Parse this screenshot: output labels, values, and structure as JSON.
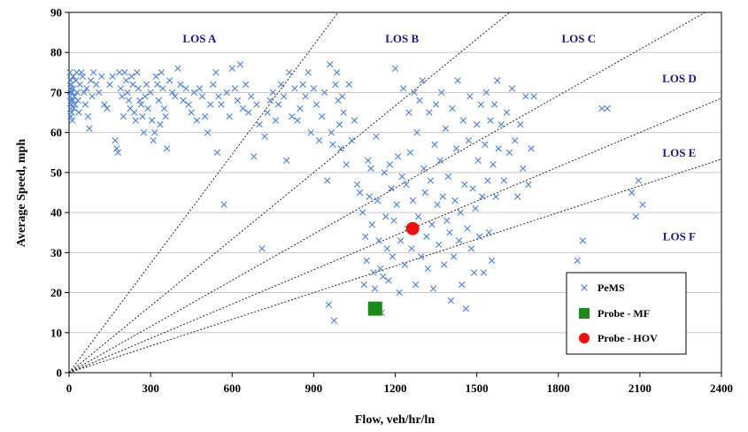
{
  "chart_data": {
    "type": "scatter",
    "title": "",
    "xlabel": "Flow, veh/hr/ln",
    "ylabel": "Average Speed, mph",
    "xlim": [
      0,
      2400
    ],
    "ylim": [
      0,
      90
    ],
    "xticks": [
      "0",
      "300",
      "600",
      "900",
      "1200",
      "1500",
      "1800",
      "2100",
      "2400"
    ],
    "yticks": [
      "0",
      "10",
      "20",
      "30",
      "40",
      "50",
      "60",
      "70",
      "80",
      "90"
    ],
    "grid": "horizontal",
    "legend_position": "bottom-right",
    "los_lines_density": [
      11,
      18,
      26,
      35,
      45
    ],
    "los_labels": [
      {
        "text": "LOS A",
        "x": 480,
        "y": 83.5
      },
      {
        "text": "LOS B",
        "x": 1225,
        "y": 83.5
      },
      {
        "text": "LOS C",
        "x": 1875,
        "y": 83.5
      },
      {
        "text": "LOS D",
        "x": 2245,
        "y": 73.5
      },
      {
        "text": "LOS E",
        "x": 2245,
        "y": 55
      },
      {
        "text": "LOS F",
        "x": 2245,
        "y": 34
      }
    ],
    "series": [
      {
        "name": "PeMS",
        "marker": "x",
        "color": "#4a7fd4",
        "points": [
          [
            3,
            75
          ],
          [
            5,
            73
          ],
          [
            6,
            71
          ],
          [
            8,
            70
          ],
          [
            4,
            69
          ],
          [
            7,
            68
          ],
          [
            9,
            67
          ],
          [
            5,
            66
          ],
          [
            10,
            65
          ],
          [
            6,
            64
          ],
          [
            12,
            63
          ],
          [
            8,
            72
          ],
          [
            15,
            74
          ],
          [
            11,
            70
          ],
          [
            14,
            68
          ],
          [
            18,
            66
          ],
          [
            16,
            71
          ],
          [
            20,
            69
          ],
          [
            22,
            67
          ],
          [
            25,
            73
          ],
          [
            28,
            75
          ],
          [
            30,
            70
          ],
          [
            33,
            68
          ],
          [
            36,
            65
          ],
          [
            40,
            72
          ],
          [
            45,
            75
          ],
          [
            50,
            74
          ],
          [
            55,
            70
          ],
          [
            60,
            67
          ],
          [
            65,
            71
          ],
          [
            70,
            64
          ],
          [
            75,
            61
          ],
          [
            80,
            73
          ],
          [
            85,
            69
          ],
          [
            90,
            75
          ],
          [
            100,
            72
          ],
          [
            110,
            70
          ],
          [
            120,
            74
          ],
          [
            130,
            67
          ],
          [
            140,
            66
          ],
          [
            150,
            72
          ],
          [
            160,
            74
          ],
          [
            170,
            58
          ],
          [
            175,
            56
          ],
          [
            180,
            55
          ],
          [
            185,
            75
          ],
          [
            190,
            71
          ],
          [
            195,
            69
          ],
          [
            200,
            64
          ],
          [
            205,
            75
          ],
          [
            210,
            73
          ],
          [
            215,
            70
          ],
          [
            220,
            68
          ],
          [
            225,
            66
          ],
          [
            230,
            74
          ],
          [
            235,
            72
          ],
          [
            240,
            65
          ],
          [
            245,
            63
          ],
          [
            250,
            75
          ],
          [
            255,
            71
          ],
          [
            260,
            68
          ],
          [
            265,
            67
          ],
          [
            270,
            64
          ],
          [
            275,
            60
          ],
          [
            280,
            69
          ],
          [
            285,
            72
          ],
          [
            290,
            66
          ],
          [
            300,
            70
          ],
          [
            305,
            63
          ],
          [
            310,
            58
          ],
          [
            315,
            60
          ],
          [
            320,
            74
          ],
          [
            325,
            72
          ],
          [
            330,
            68
          ],
          [
            335,
            62
          ],
          [
            340,
            75
          ],
          [
            345,
            71
          ],
          [
            350,
            66
          ],
          [
            355,
            64
          ],
          [
            360,
            56
          ],
          [
            370,
            73
          ],
          [
            380,
            70
          ],
          [
            390,
            69
          ],
          [
            400,
            76
          ],
          [
            410,
            72
          ],
          [
            420,
            68
          ],
          [
            430,
            71
          ],
          [
            440,
            67
          ],
          [
            450,
            65
          ],
          [
            460,
            70
          ],
          [
            470,
            63
          ],
          [
            480,
            71
          ],
          [
            490,
            69
          ],
          [
            500,
            64
          ],
          [
            510,
            60
          ],
          [
            520,
            67
          ],
          [
            530,
            72
          ],
          [
            540,
            75
          ],
          [
            545,
            55
          ],
          [
            550,
            69
          ],
          [
            560,
            67
          ],
          [
            570,
            42
          ],
          [
            580,
            70
          ],
          [
            590,
            64
          ],
          [
            600,
            76
          ],
          [
            610,
            71
          ],
          [
            620,
            68
          ],
          [
            630,
            77
          ],
          [
            640,
            66
          ],
          [
            650,
            72
          ],
          [
            660,
            65
          ],
          [
            670,
            69
          ],
          [
            680,
            54
          ],
          [
            690,
            67
          ],
          [
            700,
            62
          ],
          [
            710,
            31
          ],
          [
            720,
            59
          ],
          [
            730,
            65
          ],
          [
            740,
            68
          ],
          [
            750,
            70
          ],
          [
            760,
            63
          ],
          [
            770,
            67
          ],
          [
            780,
            72
          ],
          [
            790,
            69
          ],
          [
            800,
            53
          ],
          [
            810,
            75
          ],
          [
            820,
            64
          ],
          [
            830,
            71
          ],
          [
            840,
            63
          ],
          [
            850,
            66
          ],
          [
            860,
            72
          ],
          [
            870,
            69
          ],
          [
            880,
            75
          ],
          [
            890,
            60
          ],
          [
            900,
            71
          ],
          [
            910,
            67
          ],
          [
            920,
            58
          ],
          [
            930,
            64
          ],
          [
            940,
            70
          ],
          [
            950,
            48
          ],
          [
            955,
            17
          ],
          [
            960,
            77
          ],
          [
            965,
            60
          ],
          [
            970,
            57
          ],
          [
            975,
            13
          ],
          [
            980,
            72
          ],
          [
            985,
            75
          ],
          [
            990,
            68
          ],
          [
            995,
            62
          ],
          [
            1000,
            56
          ],
          [
            1005,
            69
          ],
          [
            1010,
            65
          ],
          [
            1020,
            52
          ],
          [
            1030,
            72
          ],
          [
            1040,
            58
          ],
          [
            1050,
            63
          ],
          [
            1060,
            47
          ],
          [
            1070,
            45
          ],
          [
            1080,
            40
          ],
          [
            1085,
            22
          ],
          [
            1090,
            34
          ],
          [
            1095,
            28
          ],
          [
            1100,
            53
          ],
          [
            1105,
            44
          ],
          [
            1110,
            51
          ],
          [
            1115,
            37
          ],
          [
            1120,
            25
          ],
          [
            1125,
            21
          ],
          [
            1130,
            59
          ],
          [
            1135,
            43
          ],
          [
            1140,
            33
          ],
          [
            1145,
            26
          ],
          [
            1150,
            15
          ],
          [
            1155,
            24
          ],
          [
            1160,
            50
          ],
          [
            1165,
            39
          ],
          [
            1170,
            31
          ],
          [
            1175,
            23
          ],
          [
            1180,
            52
          ],
          [
            1185,
            46
          ],
          [
            1190,
            29
          ],
          [
            1195,
            38
          ],
          [
            1200,
            76
          ],
          [
            1205,
            42
          ],
          [
            1210,
            54
          ],
          [
            1215,
            20
          ],
          [
            1220,
            33
          ],
          [
            1225,
            49
          ],
          [
            1230,
            71
          ],
          [
            1235,
            27
          ],
          [
            1240,
            47
          ],
          [
            1245,
            36
          ],
          [
            1250,
            65
          ],
          [
            1255,
            55
          ],
          [
            1260,
            31
          ],
          [
            1265,
            43
          ],
          [
            1270,
            70
          ],
          [
            1275,
            22
          ],
          [
            1280,
            60
          ],
          [
            1285,
            39
          ],
          [
            1290,
            68
          ],
          [
            1295,
            29
          ],
          [
            1300,
            73
          ],
          [
            1305,
            51
          ],
          [
            1310,
            45
          ],
          [
            1315,
            34
          ],
          [
            1320,
            26
          ],
          [
            1325,
            65
          ],
          [
            1330,
            48
          ],
          [
            1335,
            37
          ],
          [
            1340,
            21
          ],
          [
            1345,
            57
          ],
          [
            1350,
            67
          ],
          [
            1355,
            42
          ],
          [
            1360,
            32
          ],
          [
            1365,
            53
          ],
          [
            1370,
            70
          ],
          [
            1375,
            44
          ],
          [
            1380,
            27
          ],
          [
            1385,
            61
          ],
          [
            1390,
            38
          ],
          [
            1395,
            49
          ],
          [
            1400,
            35
          ],
          [
            1405,
            18
          ],
          [
            1410,
            66
          ],
          [
            1415,
            29
          ],
          [
            1420,
            43
          ],
          [
            1425,
            56
          ],
          [
            1430,
            73
          ],
          [
            1435,
            33
          ],
          [
            1440,
            40
          ],
          [
            1445,
            22
          ],
          [
            1450,
            63
          ],
          [
            1455,
            47
          ],
          [
            1460,
            16
          ],
          [
            1465,
            36
          ],
          [
            1470,
            58
          ],
          [
            1475,
            69
          ],
          [
            1480,
            31
          ],
          [
            1485,
            46
          ],
          [
            1490,
            25
          ],
          [
            1495,
            41
          ],
          [
            1500,
            62
          ],
          [
            1505,
            53
          ],
          [
            1510,
            34
          ],
          [
            1515,
            67
          ],
          [
            1520,
            44
          ],
          [
            1525,
            25
          ],
          [
            1530,
            57
          ],
          [
            1535,
            70
          ],
          [
            1540,
            48
          ],
          [
            1545,
            35
          ],
          [
            1550,
            63
          ],
          [
            1555,
            28
          ],
          [
            1560,
            52
          ],
          [
            1565,
            67
          ],
          [
            1570,
            44
          ],
          [
            1575,
            73
          ],
          [
            1580,
            56
          ],
          [
            1590,
            62
          ],
          [
            1600,
            48
          ],
          [
            1610,
            65
          ],
          [
            1620,
            55
          ],
          [
            1630,
            71
          ],
          [
            1640,
            58
          ],
          [
            1650,
            44
          ],
          [
            1660,
            62
          ],
          [
            1670,
            51
          ],
          [
            1680,
            69
          ],
          [
            1690,
            47
          ],
          [
            1700,
            56
          ],
          [
            1710,
            69
          ],
          [
            1870,
            28
          ],
          [
            1890,
            33
          ],
          [
            1960,
            66
          ],
          [
            1980,
            66
          ],
          [
            2070,
            45
          ],
          [
            2085,
            39
          ],
          [
            2095,
            48
          ],
          [
            2110,
            42
          ]
        ]
      },
      {
        "name": "Probe - MF",
        "marker": "square",
        "color": "#1e8a1e",
        "points": [
          [
            1126,
            16
          ]
        ]
      },
      {
        "name": "Probe - HOV",
        "marker": "circle",
        "color": "#ee1111",
        "points": [
          [
            1264,
            36
          ]
        ]
      }
    ]
  }
}
